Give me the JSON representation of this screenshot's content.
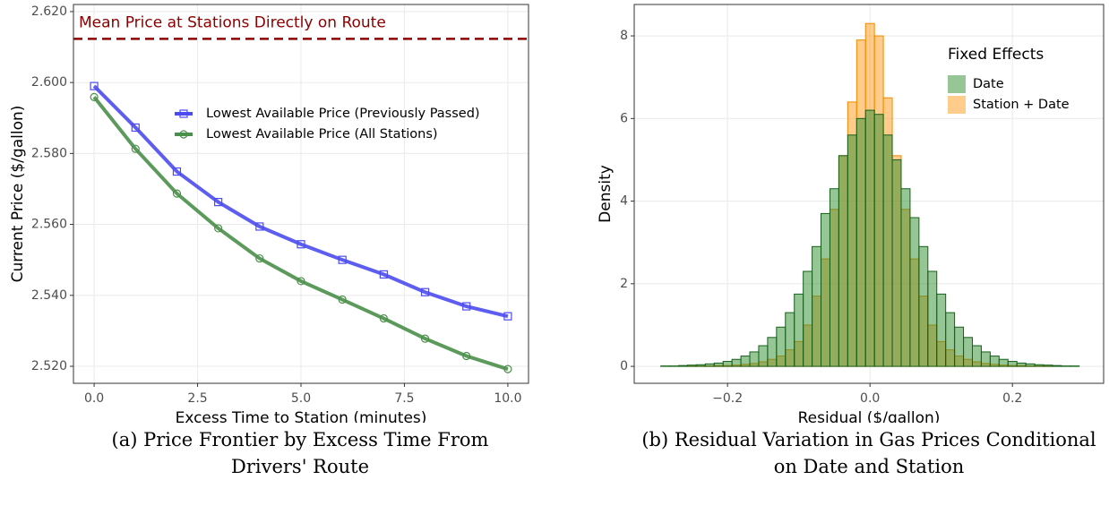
{
  "chart_data": [
    {
      "type": "line",
      "caption": "(a) Price Frontier by Excess Time From Drivers' Route",
      "xlabel": "Excess Time to Station (minutes)",
      "ylabel": "Current Price ($/gallon)",
      "x": [
        0,
        1,
        2,
        3,
        4,
        5,
        6,
        7,
        8,
        9,
        10
      ],
      "series": [
        {
          "name": "Lowest Available Price (Previously Passed)",
          "color": "#4b4bf0",
          "marker": "square",
          "values": [
            2.599,
            2.5873,
            2.5749,
            2.5663,
            2.5594,
            2.5544,
            2.55,
            2.5459,
            2.5409,
            2.5369,
            2.5341
          ]
        },
        {
          "name": "Lowest Available Price (All Stations)",
          "color": "#4a8f4a",
          "marker": "circle",
          "values": [
            2.5959,
            2.5813,
            2.5687,
            2.5589,
            2.5504,
            2.544,
            2.5388,
            2.5335,
            2.5278,
            2.5229,
            2.5192
          ]
        }
      ],
      "hlines": [
        {
          "value": 2.6123,
          "label": "Mean Price at Stations Directly on Route",
          "color": "#8b0000"
        }
      ],
      "xlim": [
        -0.5,
        10.5
      ],
      "xticks": [
        {
          "value": 0,
          "label": "0.0"
        },
        2.5,
        {
          "value": 5,
          "label": "5.0"
        },
        7.5,
        {
          "value": 10,
          "label": "10.0"
        }
      ],
      "ylim": [
        2.5152,
        2.622
      ],
      "yticks": [
        {
          "value": 2.52,
          "label": "2.520"
        },
        {
          "value": 2.54,
          "label": "2.540"
        },
        {
          "value": 2.56,
          "label": "2.560"
        },
        {
          "value": 2.58,
          "label": "2.580"
        },
        {
          "value": 2.6,
          "label": "2.600"
        },
        {
          "value": 2.62,
          "label": "2.620"
        }
      ],
      "grid": true
    },
    {
      "type": "histogram",
      "caption": "(b) Residual Variation in Gas Prices Conditional on Date and Station",
      "xlabel": "Residual ($/gallon)",
      "ylabel": "Density",
      "legend_title": "Fixed Effects",
      "bins": [
        -0.29375,
        -0.28125,
        -0.26875,
        -0.25625,
        -0.24375,
        -0.23125,
        -0.21875,
        -0.20625,
        -0.19375,
        -0.18125,
        -0.16875,
        -0.15625,
        -0.14375,
        -0.13125,
        -0.11875,
        -0.10625,
        -0.09375,
        -0.08125,
        -0.06875,
        -0.05625,
        -0.04375,
        -0.03125,
        -0.01875,
        -0.00625,
        0.00625,
        0.01875,
        0.03125,
        0.04375,
        0.05625,
        0.06875,
        0.08125,
        0.09375,
        0.10625,
        0.11875,
        0.13125,
        0.14375,
        0.15625,
        0.16875,
        0.18125,
        0.19375,
        0.20625,
        0.21875,
        0.23125,
        0.24375,
        0.25625,
        0.26875,
        0.28125,
        0.29375
      ],
      "series": [
        {
          "name": "Date",
          "color": "#2e8b2e",
          "edge": "#16601a",
          "values": [
            0.01,
            0.01,
            0.02,
            0.03,
            0.04,
            0.06,
            0.08,
            0.12,
            0.17,
            0.25,
            0.35,
            0.5,
            0.7,
            0.95,
            1.3,
            1.75,
            2.3,
            2.9,
            3.7,
            4.3,
            5.1,
            5.6,
            6.0,
            6.2,
            6.1,
            5.6,
            5.0,
            4.3,
            3.6,
            2.9,
            2.3,
            1.75,
            1.3,
            0.95,
            0.7,
            0.5,
            0.35,
            0.25,
            0.17,
            0.12,
            0.08,
            0.06,
            0.04,
            0.03,
            0.02,
            0.01,
            0.01
          ]
        },
        {
          "name": "Station + Date",
          "color": "#ff9a1a",
          "edge": "#f08a00",
          "values": [
            0,
            0,
            0,
            0.01,
            0.01,
            0.01,
            0.02,
            0.02,
            0.03,
            0.05,
            0.07,
            0.11,
            0.17,
            0.25,
            0.4,
            0.6,
            1.0,
            1.7,
            2.6,
            3.8,
            5.1,
            6.4,
            7.9,
            8.3,
            8.0,
            6.5,
            5.1,
            3.8,
            2.6,
            1.7,
            1.0,
            0.6,
            0.4,
            0.25,
            0.17,
            0.11,
            0.07,
            0.05,
            0.03,
            0.02,
            0.02,
            0.01,
            0.01,
            0.01,
            0,
            0,
            0
          ]
        }
      ],
      "xlim": [
        -0.331,
        0.328
      ],
      "xticks": [
        {
          "value": -0.2,
          "label": "−0.2"
        },
        {
          "value": 0,
          "label": "0.0"
        },
        0.2
      ],
      "ylim": [
        -0.41,
        8.76
      ],
      "yticks": [
        0,
        2,
        4,
        6,
        8
      ],
      "grid": true
    }
  ]
}
